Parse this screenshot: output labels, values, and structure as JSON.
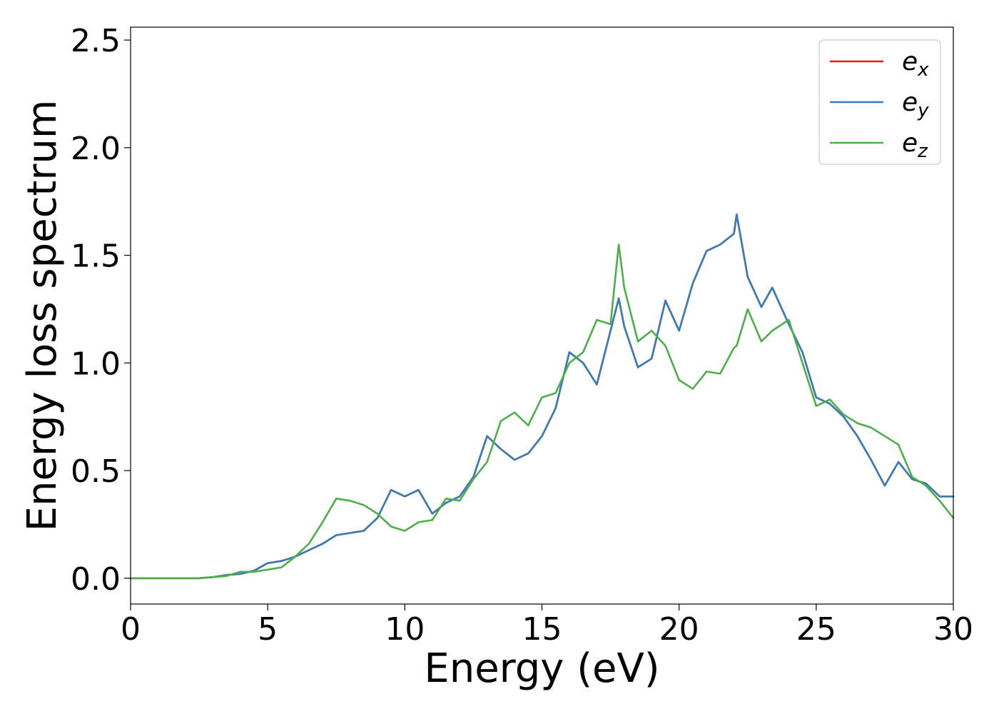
{
  "chart_data": {
    "type": "line",
    "title": "",
    "xlabel": "Energy (eV)",
    "ylabel": "Energy loss spectrum",
    "xlim": [
      0,
      30
    ],
    "ylim": [
      -0.12,
      2.56
    ],
    "xticks": [
      0,
      5,
      10,
      15,
      20,
      25,
      30
    ],
    "yticks": [
      0.0,
      0.5,
      1.0,
      1.5,
      2.0,
      2.5
    ],
    "xtick_labels": [
      "0",
      "5",
      "10",
      "15",
      "20",
      "25",
      "30"
    ],
    "ytick_labels": [
      "0.0",
      "0.5",
      "1.0",
      "1.5",
      "2.0",
      "2.5"
    ],
    "grid": false,
    "legend_position": "top-right",
    "x": [
      0,
      0.5,
      1,
      1.5,
      2,
      2.5,
      3,
      3.5,
      4,
      4.5,
      5,
      5.5,
      6,
      6.5,
      7,
      7.5,
      8,
      8.5,
      9,
      9.5,
      10,
      10.5,
      11,
      11.5,
      12,
      12.5,
      13,
      13.5,
      14,
      14.5,
      15,
      15.5,
      16,
      16.5,
      17,
      17.5,
      17.8,
      18,
      18.5,
      19,
      19.5,
      20,
      20.5,
      21,
      21.5,
      22,
      22.1,
      22.5,
      23,
      23.4,
      24,
      24.5,
      25,
      25.5,
      26,
      26.5,
      27,
      27.5,
      28,
      28.5,
      29,
      29.5,
      30
    ],
    "series": [
      {
        "name": "e",
        "subscript": "x",
        "color": "#e41a1c",
        "values": [
          0.0,
          0.0,
          0.0,
          0.0,
          0.0,
          0.0,
          0.005,
          0.015,
          0.02,
          0.035,
          0.07,
          0.08,
          0.1,
          0.13,
          0.16,
          0.2,
          0.21,
          0.22,
          0.28,
          0.41,
          0.38,
          0.41,
          0.3,
          0.35,
          0.38,
          0.47,
          0.66,
          0.6,
          0.55,
          0.58,
          0.66,
          0.79,
          1.05,
          1.0,
          0.9,
          1.15,
          1.3,
          1.17,
          0.98,
          1.02,
          1.29,
          1.15,
          1.37,
          1.52,
          1.55,
          1.6,
          1.69,
          1.4,
          1.26,
          1.35,
          1.18,
          1.05,
          0.84,
          0.81,
          0.75,
          0.66,
          0.55,
          0.43,
          0.54,
          0.46,
          0.44,
          0.38,
          0.38
        ]
      },
      {
        "name": "e",
        "subscript": "y",
        "color": "#377eb8",
        "values": [
          0.0,
          0.0,
          0.0,
          0.0,
          0.0,
          0.0,
          0.005,
          0.015,
          0.02,
          0.035,
          0.07,
          0.08,
          0.1,
          0.13,
          0.16,
          0.2,
          0.21,
          0.22,
          0.28,
          0.41,
          0.38,
          0.41,
          0.3,
          0.35,
          0.38,
          0.47,
          0.66,
          0.6,
          0.55,
          0.58,
          0.66,
          0.79,
          1.05,
          1.0,
          0.9,
          1.15,
          1.3,
          1.17,
          0.98,
          1.02,
          1.29,
          1.15,
          1.37,
          1.52,
          1.55,
          1.6,
          1.69,
          1.4,
          1.26,
          1.35,
          1.18,
          1.05,
          0.84,
          0.81,
          0.75,
          0.66,
          0.55,
          0.43,
          0.54,
          0.46,
          0.44,
          0.38,
          0.38
        ]
      },
      {
        "name": "e",
        "subscript": "z",
        "color": "#4daf4a",
        "values": [
          0.0,
          0.0,
          0.0,
          0.0,
          0.0,
          0.0,
          0.005,
          0.01,
          0.03,
          0.03,
          0.04,
          0.05,
          0.1,
          0.16,
          0.26,
          0.37,
          0.36,
          0.34,
          0.3,
          0.24,
          0.22,
          0.26,
          0.27,
          0.37,
          0.36,
          0.46,
          0.54,
          0.73,
          0.77,
          0.71,
          0.84,
          0.86,
          1.0,
          1.05,
          1.2,
          1.18,
          1.55,
          1.35,
          1.1,
          1.15,
          1.08,
          0.92,
          0.88,
          0.96,
          0.95,
          1.07,
          1.08,
          1.25,
          1.1,
          1.15,
          1.2,
          1.0,
          0.8,
          0.83,
          0.76,
          0.72,
          0.7,
          0.66,
          0.62,
          0.47,
          0.43,
          0.36,
          0.28
        ]
      }
    ]
  }
}
